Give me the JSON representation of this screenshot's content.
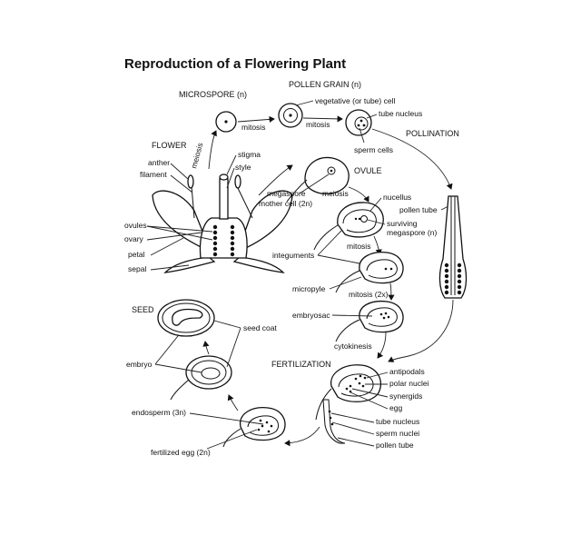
{
  "title": "Reproduction of a Flowering Plant",
  "stages": {
    "microspore": "MICROSPORE (n)",
    "pollen_grain": "POLLEN GRAIN (n)",
    "pollination": "POLLINATION",
    "flower": "FLOWER",
    "ovule": "OVULE",
    "seed": "SEED",
    "fertilization": "FERTILIZATION"
  },
  "labels": {
    "mitosis_a": "mitosis",
    "mitosis_b": "mitosis",
    "vegetative_cell": "vegetative (or tube) cell",
    "tube_nucleus_top": "tube nucleus",
    "sperm_cells": "sperm cells",
    "meiosis_vertical": "meiosis",
    "anther": "anther",
    "filament": "filament",
    "stigma": "stigma",
    "style": "style",
    "ovules": "ovules",
    "ovary": "ovary",
    "petal": "petal",
    "sepal": "sepal",
    "megaspore_mother_cell_1": "megaspore",
    "megaspore_mother_cell_2": "mother cell (2n)",
    "meiosis_ovule": "meiosis",
    "nucellus": "nucellus",
    "pollen_tube_right": "pollen tube",
    "surviving_megaspore_1": "surviving",
    "surviving_megaspore_2": "megaspore (n)",
    "integuments": "integuments",
    "mitosis_ovule": "mitosis",
    "micropyle": "micropyle",
    "mitosis_2x": "mitosis (2x)",
    "embryosac": "embryosac",
    "cytokinesis": "cytokinesis",
    "seed_coat": "seed coat",
    "embryo": "embryo",
    "endosperm": "endosperm (3n)",
    "fertilized_egg": "fertilized egg (2n)",
    "antipodals": "antipodals",
    "polar_nuclei": "polar nuclei",
    "synergids": "synergids",
    "egg": "egg",
    "tube_nucleus_bottom": "tube nucleus",
    "sperm_nuclei": "sperm nuclei",
    "pollen_tube_bottom": "pollen tube"
  }
}
